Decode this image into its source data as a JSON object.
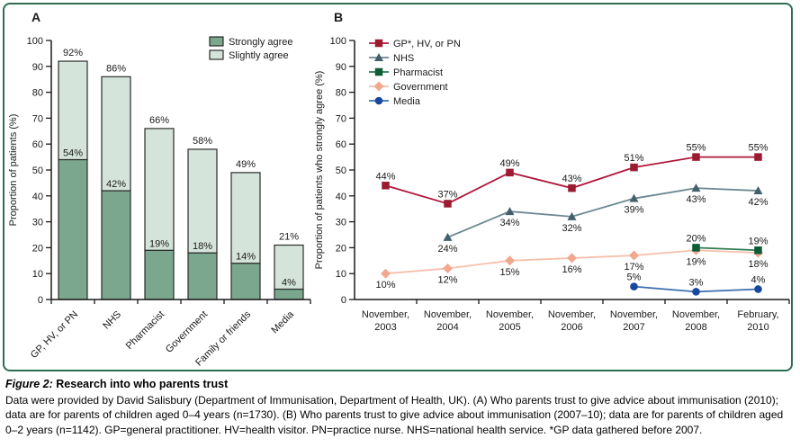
{
  "figure": {
    "panel_a_label": "A",
    "panel_b_label": "B",
    "border_color": "#2d6e52"
  },
  "caption": {
    "title_prefix": "Figure 2:",
    "title": "Research into who parents trust",
    "body": "Data were provided by David Salisbury (Department of Immunisation, Department of Health, UK). (A) Who parents trust to give advice about immunisation (2010); data are for parents of children aged 0–4 years (n=1730). (B) Who parents trust to give advice about immunisation (2007–10); data are for parents of children aged 0–2 years (n=1142). GP=general practitioner. HV=health visitor. PN=practice nurse. NHS=national health service. *GP data gathered before 2007."
  },
  "chart_data": [
    {
      "id": "A",
      "type": "bar",
      "stacked": true,
      "ylabel": "Proportion of patients (%)",
      "ylim": [
        0,
        100
      ],
      "yticks": [
        0,
        10,
        20,
        30,
        40,
        50,
        60,
        70,
        80,
        90,
        100
      ],
      "categories": [
        "GP, HV, or PN",
        "NHS",
        "Pharmacist",
        "Government",
        "Family or friends",
        "Media"
      ],
      "series": [
        {
          "name": "Strongly agree",
          "color": "#7aa78d",
          "values": [
            54,
            42,
            19,
            18,
            14,
            4
          ]
        },
        {
          "name": "Slightly agree",
          "color": "#d5e4da",
          "values": [
            38,
            44,
            47,
            40,
            35,
            17
          ]
        }
      ],
      "totals": [
        92,
        86,
        66,
        58,
        49,
        21
      ],
      "bar_outline_color": "#2b2b2b",
      "legend_position": "top-right",
      "grid": false
    },
    {
      "id": "B",
      "type": "line",
      "ylabel": "Proportion of patients who strongly agree (%)",
      "ylim": [
        0,
        100
      ],
      "yticks": [
        0,
        10,
        20,
        30,
        40,
        50,
        60,
        70,
        80,
        90,
        100
      ],
      "categories": [
        [
          "November,",
          "2003"
        ],
        [
          "November,",
          "2004"
        ],
        [
          "November,",
          "2005"
        ],
        [
          "November,",
          "2006"
        ],
        [
          "November,",
          "2007"
        ],
        [
          "November,",
          "2008"
        ],
        [
          "February,",
          "2010"
        ]
      ],
      "series": [
        {
          "name": "GP*, HV, or PN",
          "marker": "square",
          "marker_color": "#9b1b31",
          "line_color": "#b0173a",
          "label_pos": "above",
          "values": [
            44,
            37,
            49,
            43,
            51,
            55,
            55
          ]
        },
        {
          "name": "NHS",
          "marker": "triangle",
          "marker_color": "#44606d",
          "line_color": "#6c8893",
          "label_pos": "below",
          "values": [
            null,
            24,
            34,
            32,
            39,
            43,
            42
          ]
        },
        {
          "name": "Pharmacist",
          "marker": "square",
          "marker_color": "#0d5c35",
          "line_color": "#2f7d52",
          "label_pos": "above",
          "values": [
            null,
            null,
            null,
            null,
            null,
            20,
            19
          ]
        },
        {
          "name": "Government",
          "marker": "diamond",
          "marker_color": "#f2a78f",
          "line_color": "#f6c0ad",
          "label_pos": "below",
          "values": [
            10,
            12,
            15,
            16,
            17,
            19,
            18
          ]
        },
        {
          "name": "Media",
          "marker": "circle",
          "marker_color": "#17479e",
          "line_color": "#3b6fae",
          "label_pos": "above",
          "values": [
            null,
            null,
            null,
            null,
            5,
            3,
            4
          ]
        }
      ],
      "legend_position": "top-left",
      "grid": false
    }
  ]
}
